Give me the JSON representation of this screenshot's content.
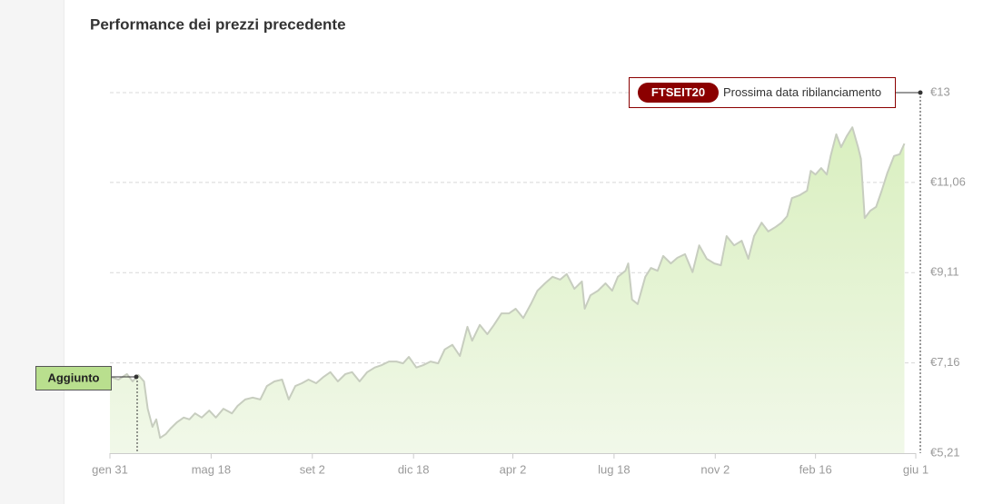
{
  "chart_data": {
    "type": "area",
    "title": "Performance dei prezzi precedente",
    "annotations": [
      "Aggiunto",
      "FTSEIT20",
      "Prossima data ribilanciamento"
    ],
    "x": [
      0,
      9,
      18,
      24,
      30,
      36,
      40,
      45,
      49,
      53,
      59,
      64,
      71,
      78,
      84,
      90,
      97,
      105,
      112,
      120,
      129,
      135,
      143,
      151,
      159,
      166,
      174,
      182,
      189,
      196,
      203,
      210,
      218,
      226,
      233,
      241,
      249,
      256,
      264,
      272,
      280,
      287,
      295,
      303,
      310,
      316,
      324,
      331,
      339,
      347,
      354,
      362,
      370,
      378,
      383,
      391,
      399,
      406,
      414,
      422,
      429,
      437,
      445,
      452,
      460,
      468,
      476,
      483,
      491,
      499,
      502,
      508,
      516,
      524,
      531,
      537,
      545,
      548,
      552,
      558,
      566,
      572,
      579,
      585,
      593,
      600,
      608,
      616,
      623,
      631,
      639,
      646,
      652,
      660,
      668,
      675,
      681,
      689,
      696,
      704,
      710,
      716,
      721,
      729,
      737,
      741,
      746,
      752,
      758,
      762,
      768,
      773,
      779,
      785,
      791,
      794,
      798,
      804,
      810,
      816,
      822,
      829,
      835,
      840
    ],
    "series": [
      {
        "name": "FTSEIT20",
        "color": "#c7cdbf",
        "fill": "#e2f2cf",
        "values": [
          6.86,
          6.8,
          6.92,
          6.76,
          6.9,
          6.76,
          6.17,
          5.78,
          5.94,
          5.54,
          5.62,
          5.74,
          5.88,
          5.98,
          5.94,
          6.07,
          5.98,
          6.13,
          5.98,
          6.17,
          6.07,
          6.23,
          6.37,
          6.41,
          6.37,
          6.66,
          6.76,
          6.8,
          6.37,
          6.66,
          6.72,
          6.8,
          6.72,
          6.86,
          6.96,
          6.76,
          6.92,
          6.96,
          6.76,
          6.96,
          7.06,
          7.11,
          7.19,
          7.19,
          7.15,
          7.29,
          7.06,
          7.11,
          7.19,
          7.15,
          7.45,
          7.55,
          7.31,
          7.94,
          7.64,
          7.98,
          7.78,
          7.98,
          8.23,
          8.23,
          8.33,
          8.13,
          8.43,
          8.72,
          8.88,
          9.02,
          8.96,
          9.08,
          8.76,
          8.92,
          8.33,
          8.62,
          8.72,
          8.88,
          8.72,
          9.02,
          9.15,
          9.31,
          8.53,
          8.43,
          9.02,
          9.21,
          9.15,
          9.47,
          9.31,
          9.43,
          9.51,
          9.12,
          9.7,
          9.41,
          9.31,
          9.27,
          9.9,
          9.7,
          9.8,
          9.41,
          9.9,
          10.19,
          10.0,
          10.1,
          10.19,
          10.33,
          10.72,
          10.78,
          10.88,
          11.31,
          11.23,
          11.37,
          11.23,
          11.63,
          12.1,
          11.82,
          12.06,
          12.25,
          11.82,
          11.57,
          10.29,
          10.45,
          10.53,
          10.88,
          11.27,
          11.63,
          11.67,
          11.9
        ]
      }
    ],
    "xlim": [
      0,
      852
    ],
    "xticks": [
      {
        "value": 0,
        "label": "gen 31"
      },
      {
        "value": 107,
        "label": "mag 18"
      },
      {
        "value": 214,
        "label": "set 2"
      },
      {
        "value": 321,
        "label": "dic 18"
      },
      {
        "value": 426,
        "label": "apr 2"
      },
      {
        "value": 533,
        "label": "lug 18"
      },
      {
        "value": 640,
        "label": "nov 2"
      },
      {
        "value": 746,
        "label": "feb 16"
      },
      {
        "value": 852,
        "label": "giu 1"
      }
    ],
    "ylim": [
      5.21,
      13
    ],
    "yticks": [
      {
        "value": 5.21,
        "label": "€5,21"
      },
      {
        "value": 7.16,
        "label": "€7,16"
      },
      {
        "value": 9.11,
        "label": "€9,11"
      },
      {
        "value": 11.06,
        "label": "€11,06"
      },
      {
        "value": 13,
        "label": "€13"
      }
    ],
    "grid": true
  }
}
